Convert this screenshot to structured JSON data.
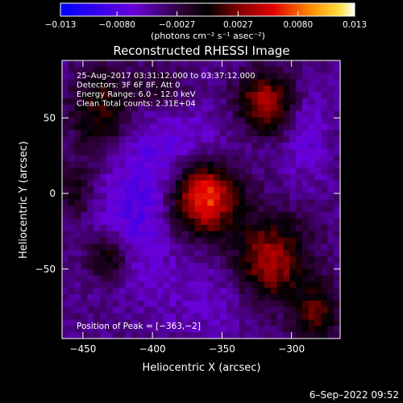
{
  "chart_data": {
    "type": "heatmap",
    "title": "Reconstructed RHESSI Image",
    "xlabel": "Heliocentric X (arcsec)",
    "ylabel": "Heliocentric Y (arcsec)",
    "xlim": [
      -465,
      -265
    ],
    "ylim": [
      -96,
      88
    ],
    "x_ticks": [
      -450,
      -400,
      -350,
      -300
    ],
    "y_ticks": [
      50,
      0,
      -50
    ],
    "x_tick_labels": [
      "−450",
      "−400",
      "−350",
      "−300"
    ],
    "y_tick_labels": [
      "50",
      "0",
      "−50"
    ],
    "colorbar": {
      "range": [
        -0.013,
        0.013
      ],
      "tick_values": [
        -0.013,
        -0.008,
        -0.0027,
        0.0027,
        0.008,
        0.013
      ],
      "tick_labels": [
        "−0.013",
        "−0.0080",
        "−0.0027",
        "0.0027",
        "0.0080",
        "0.013"
      ],
      "units_label": "(photons cm⁻² s⁻¹ asec⁻²)"
    },
    "annotations": [
      "25–Aug–2017 03:31:12.000 to 03:37:12.000",
      "Detectors: 3F 6F 8F, Att 0",
      "Energy Range: 6.0 – 12.0 keV",
      "Clean     Total counts: 2.31E+04"
    ],
    "peak_label": "Position of Peak = [−363,−2]",
    "peak": [
      -363,
      -2
    ],
    "sources": [
      {
        "x": -363,
        "y": -2,
        "amp": 0.0125,
        "sx": 17,
        "sy": 17
      },
      {
        "x": -318,
        "y": 60,
        "amp": 0.0085,
        "sx": 14,
        "sy": 14
      },
      {
        "x": -315,
        "y": -45,
        "amp": 0.0085,
        "sx": 18,
        "sy": 20
      },
      {
        "x": -282,
        "y": -80,
        "amp": 0.0055,
        "sx": 12,
        "sy": 14
      },
      {
        "x": -437,
        "y": 55,
        "amp": 0.0055,
        "sx": 15,
        "sy": 20
      },
      {
        "x": -432,
        "y": -42,
        "amp": 0.0055,
        "sx": 10,
        "sy": 10
      },
      {
        "x": -455,
        "y": 2,
        "amp": 0.0035,
        "sx": 9,
        "sy": 12
      },
      {
        "x": -395,
        "y": 70,
        "amp": 0.0035,
        "sx": 12,
        "sy": 8
      },
      {
        "x": -380,
        "y": 25,
        "amp": -0.003,
        "sx": 28,
        "sy": 22
      },
      {
        "x": -410,
        "y": -15,
        "amp": -0.0035,
        "sx": 20,
        "sy": 30
      },
      {
        "x": -290,
        "y": 40,
        "amp": -0.0028,
        "sx": 12,
        "sy": 22
      },
      {
        "x": -355,
        "y": -70,
        "amp": -0.002,
        "sx": 30,
        "sy": 20
      }
    ],
    "grid": false,
    "colormap": "rainbow-blue-to-white"
  },
  "footer": {
    "date": "6–Sep–2022 09:52"
  }
}
